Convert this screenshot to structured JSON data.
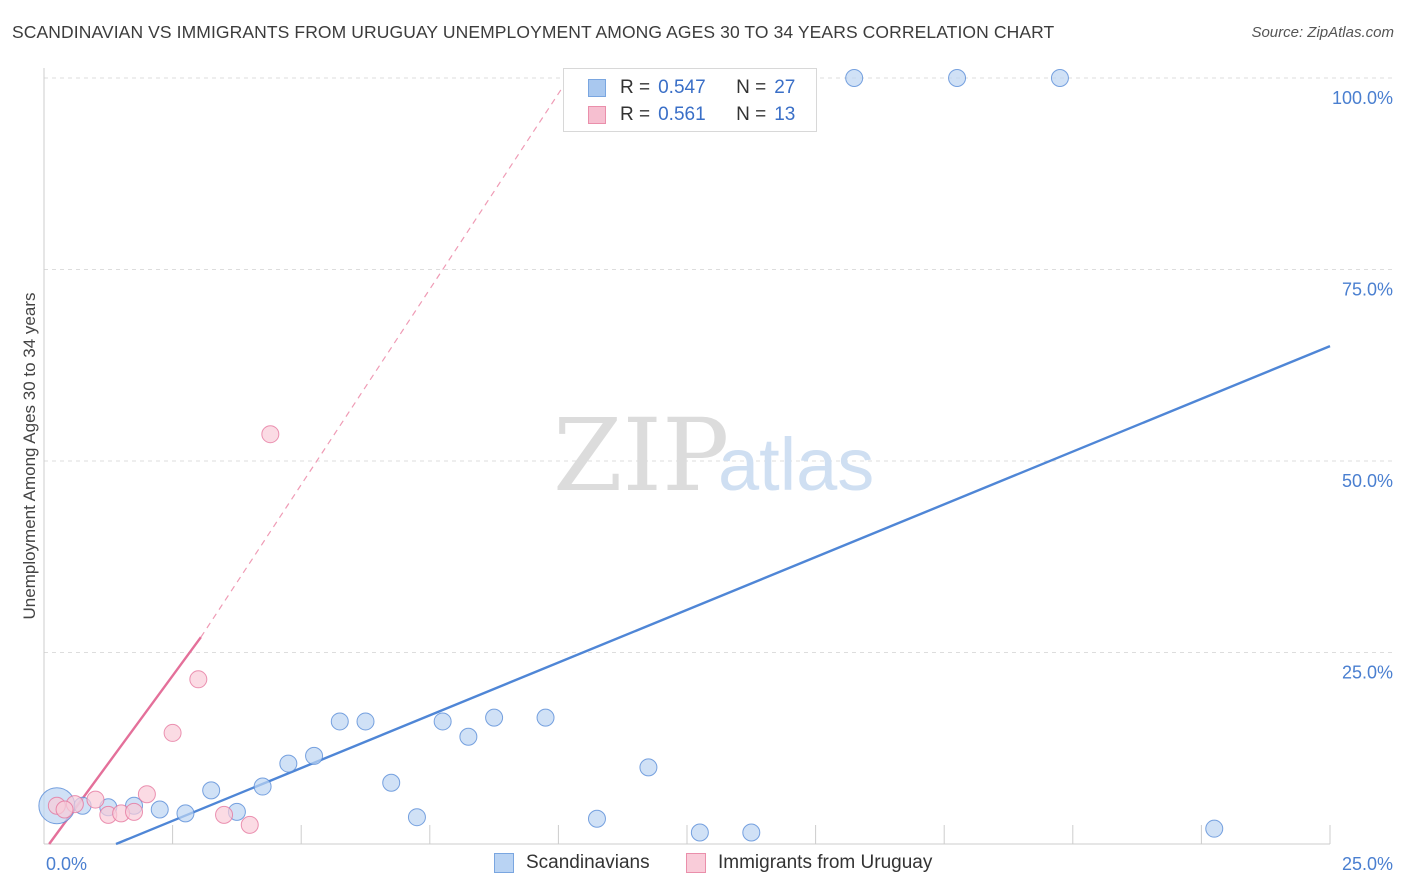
{
  "header": {
    "title": "SCANDINAVIAN VS IMMIGRANTS FROM URUGUAY UNEMPLOYMENT AMONG AGES 30 TO 34 YEARS CORRELATION CHART",
    "source": "Source: ZipAtlas.com"
  },
  "watermark": {
    "zip": "ZIP",
    "atlas": "atlas"
  },
  "legend": {
    "rows": [
      {
        "r_label": "R =",
        "r_value": "0.547",
        "n_label": "N =",
        "n_value": "27",
        "color": "#a9c8ef",
        "border": "#7aa6e0"
      },
      {
        "r_label": "R =",
        "r_value": "0.561",
        "n_label": "N =",
        "n_value": "13",
        "color": "#f6bfd0",
        "border": "#ea8fab"
      }
    ]
  },
  "bottom_legend": {
    "items": [
      {
        "label": "Scandinavians",
        "color": "#b9d3f3",
        "border": "#7aa6e0"
      },
      {
        "label": "Immigrants from Uruguay",
        "color": "#f9ccd9",
        "border": "#ea8fab"
      }
    ]
  },
  "chart_data": {
    "type": "scatter",
    "title": "SCANDINAVIAN VS IMMIGRANTS FROM URUGUAY UNEMPLOYMENT AMONG AGES 30 TO 34 YEARS CORRELATION CHART",
    "xlabel": "",
    "ylabel": "Unemployment Among Ages 30 to 34 years",
    "xlim": [
      0,
      25
    ],
    "ylim": [
      0,
      100
    ],
    "x_tick_labels": [
      "0.0%",
      "25.0%"
    ],
    "y_ticks": [
      25,
      50,
      75,
      100
    ],
    "y_tick_labels": [
      "25.0%",
      "50.0%",
      "75.0%",
      "100.0%"
    ],
    "grid": true,
    "series": [
      {
        "name": "Scandinavians",
        "color": "#4f86d6",
        "fill": "#bcd4f2",
        "points": [
          {
            "x": 0.25,
            "y": 5.0,
            "big": true
          },
          {
            "x": 0.75,
            "y": 5.0
          },
          {
            "x": 1.25,
            "y": 4.8
          },
          {
            "x": 1.75,
            "y": 5.0
          },
          {
            "x": 2.25,
            "y": 4.5
          },
          {
            "x": 2.75,
            "y": 4.0
          },
          {
            "x": 3.25,
            "y": 7.0
          },
          {
            "x": 3.75,
            "y": 4.2
          },
          {
            "x": 4.25,
            "y": 7.5
          },
          {
            "x": 4.75,
            "y": 10.5
          },
          {
            "x": 5.25,
            "y": 11.5
          },
          {
            "x": 5.75,
            "y": 16.0
          },
          {
            "x": 6.25,
            "y": 16.0
          },
          {
            "x": 6.75,
            "y": 8.0
          },
          {
            "x": 7.25,
            "y": 3.5
          },
          {
            "x": 7.75,
            "y": 16.0
          },
          {
            "x": 8.25,
            "y": 14.0
          },
          {
            "x": 8.75,
            "y": 16.5
          },
          {
            "x": 9.75,
            "y": 16.5
          },
          {
            "x": 10.75,
            "y": 3.3
          },
          {
            "x": 11.75,
            "y": 10.0
          },
          {
            "x": 12.75,
            "y": 1.5
          },
          {
            "x": 13.75,
            "y": 1.5
          },
          {
            "x": 15.75,
            "y": 100.0
          },
          {
            "x": 17.75,
            "y": 100.0
          },
          {
            "x": 19.75,
            "y": 100.0
          },
          {
            "x": 22.75,
            "y": 2.0
          }
        ],
        "trend": {
          "x": [
            1.4,
            25.0
          ],
          "y": [
            0.0,
            65.0
          ],
          "dashed": false
        }
      },
      {
        "name": "Immigrants from Uruguay",
        "color": "#e4709a",
        "fill": "#f9ccd9",
        "points": [
          {
            "x": 0.25,
            "y": 5.0
          },
          {
            "x": 0.6,
            "y": 5.2
          },
          {
            "x": 1.0,
            "y": 5.8
          },
          {
            "x": 1.25,
            "y": 3.8
          },
          {
            "x": 1.5,
            "y": 4.0
          },
          {
            "x": 1.75,
            "y": 4.2
          },
          {
            "x": 2.0,
            "y": 6.5
          },
          {
            "x": 2.5,
            "y": 14.5
          },
          {
            "x": 3.0,
            "y": 21.5
          },
          {
            "x": 3.5,
            "y": 3.8
          },
          {
            "x": 4.0,
            "y": 2.5
          },
          {
            "x": 4.4,
            "y": 53.5
          },
          {
            "x": 0.4,
            "y": 4.5
          }
        ],
        "trend": {
          "x": [
            0.1,
            3.05
          ],
          "y": [
            0.0,
            27.0
          ],
          "dashed": false
        },
        "trend_extension": {
          "x": [
            3.05,
            10.2
          ],
          "y": [
            27.0,
            100.0
          ],
          "dashed": true
        }
      }
    ]
  }
}
